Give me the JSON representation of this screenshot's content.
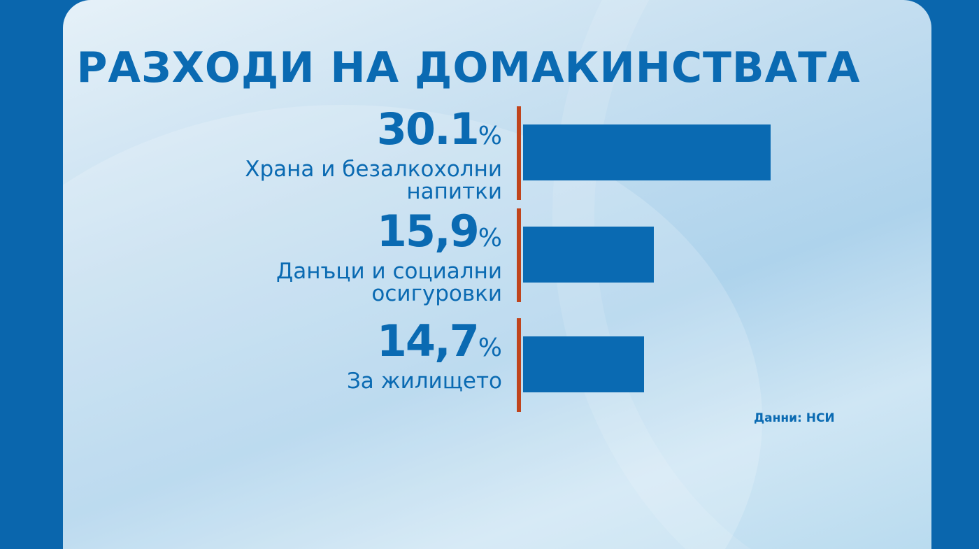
{
  "chart_data": {
    "type": "bar",
    "title": "РАЗХОДИ НА ДОМАКИНСТВАТА",
    "categories": [
      "Храна и безалкохолни напитки",
      "Данъци и социални осигуровки",
      "За жилището"
    ],
    "values": [
      30.1,
      15.9,
      14.7
    ],
    "value_labels": [
      "30.1",
      "15,9",
      "14,7"
    ],
    "unit": "%",
    "color": "#0a6ab2",
    "source": "Данни: НСИ"
  }
}
